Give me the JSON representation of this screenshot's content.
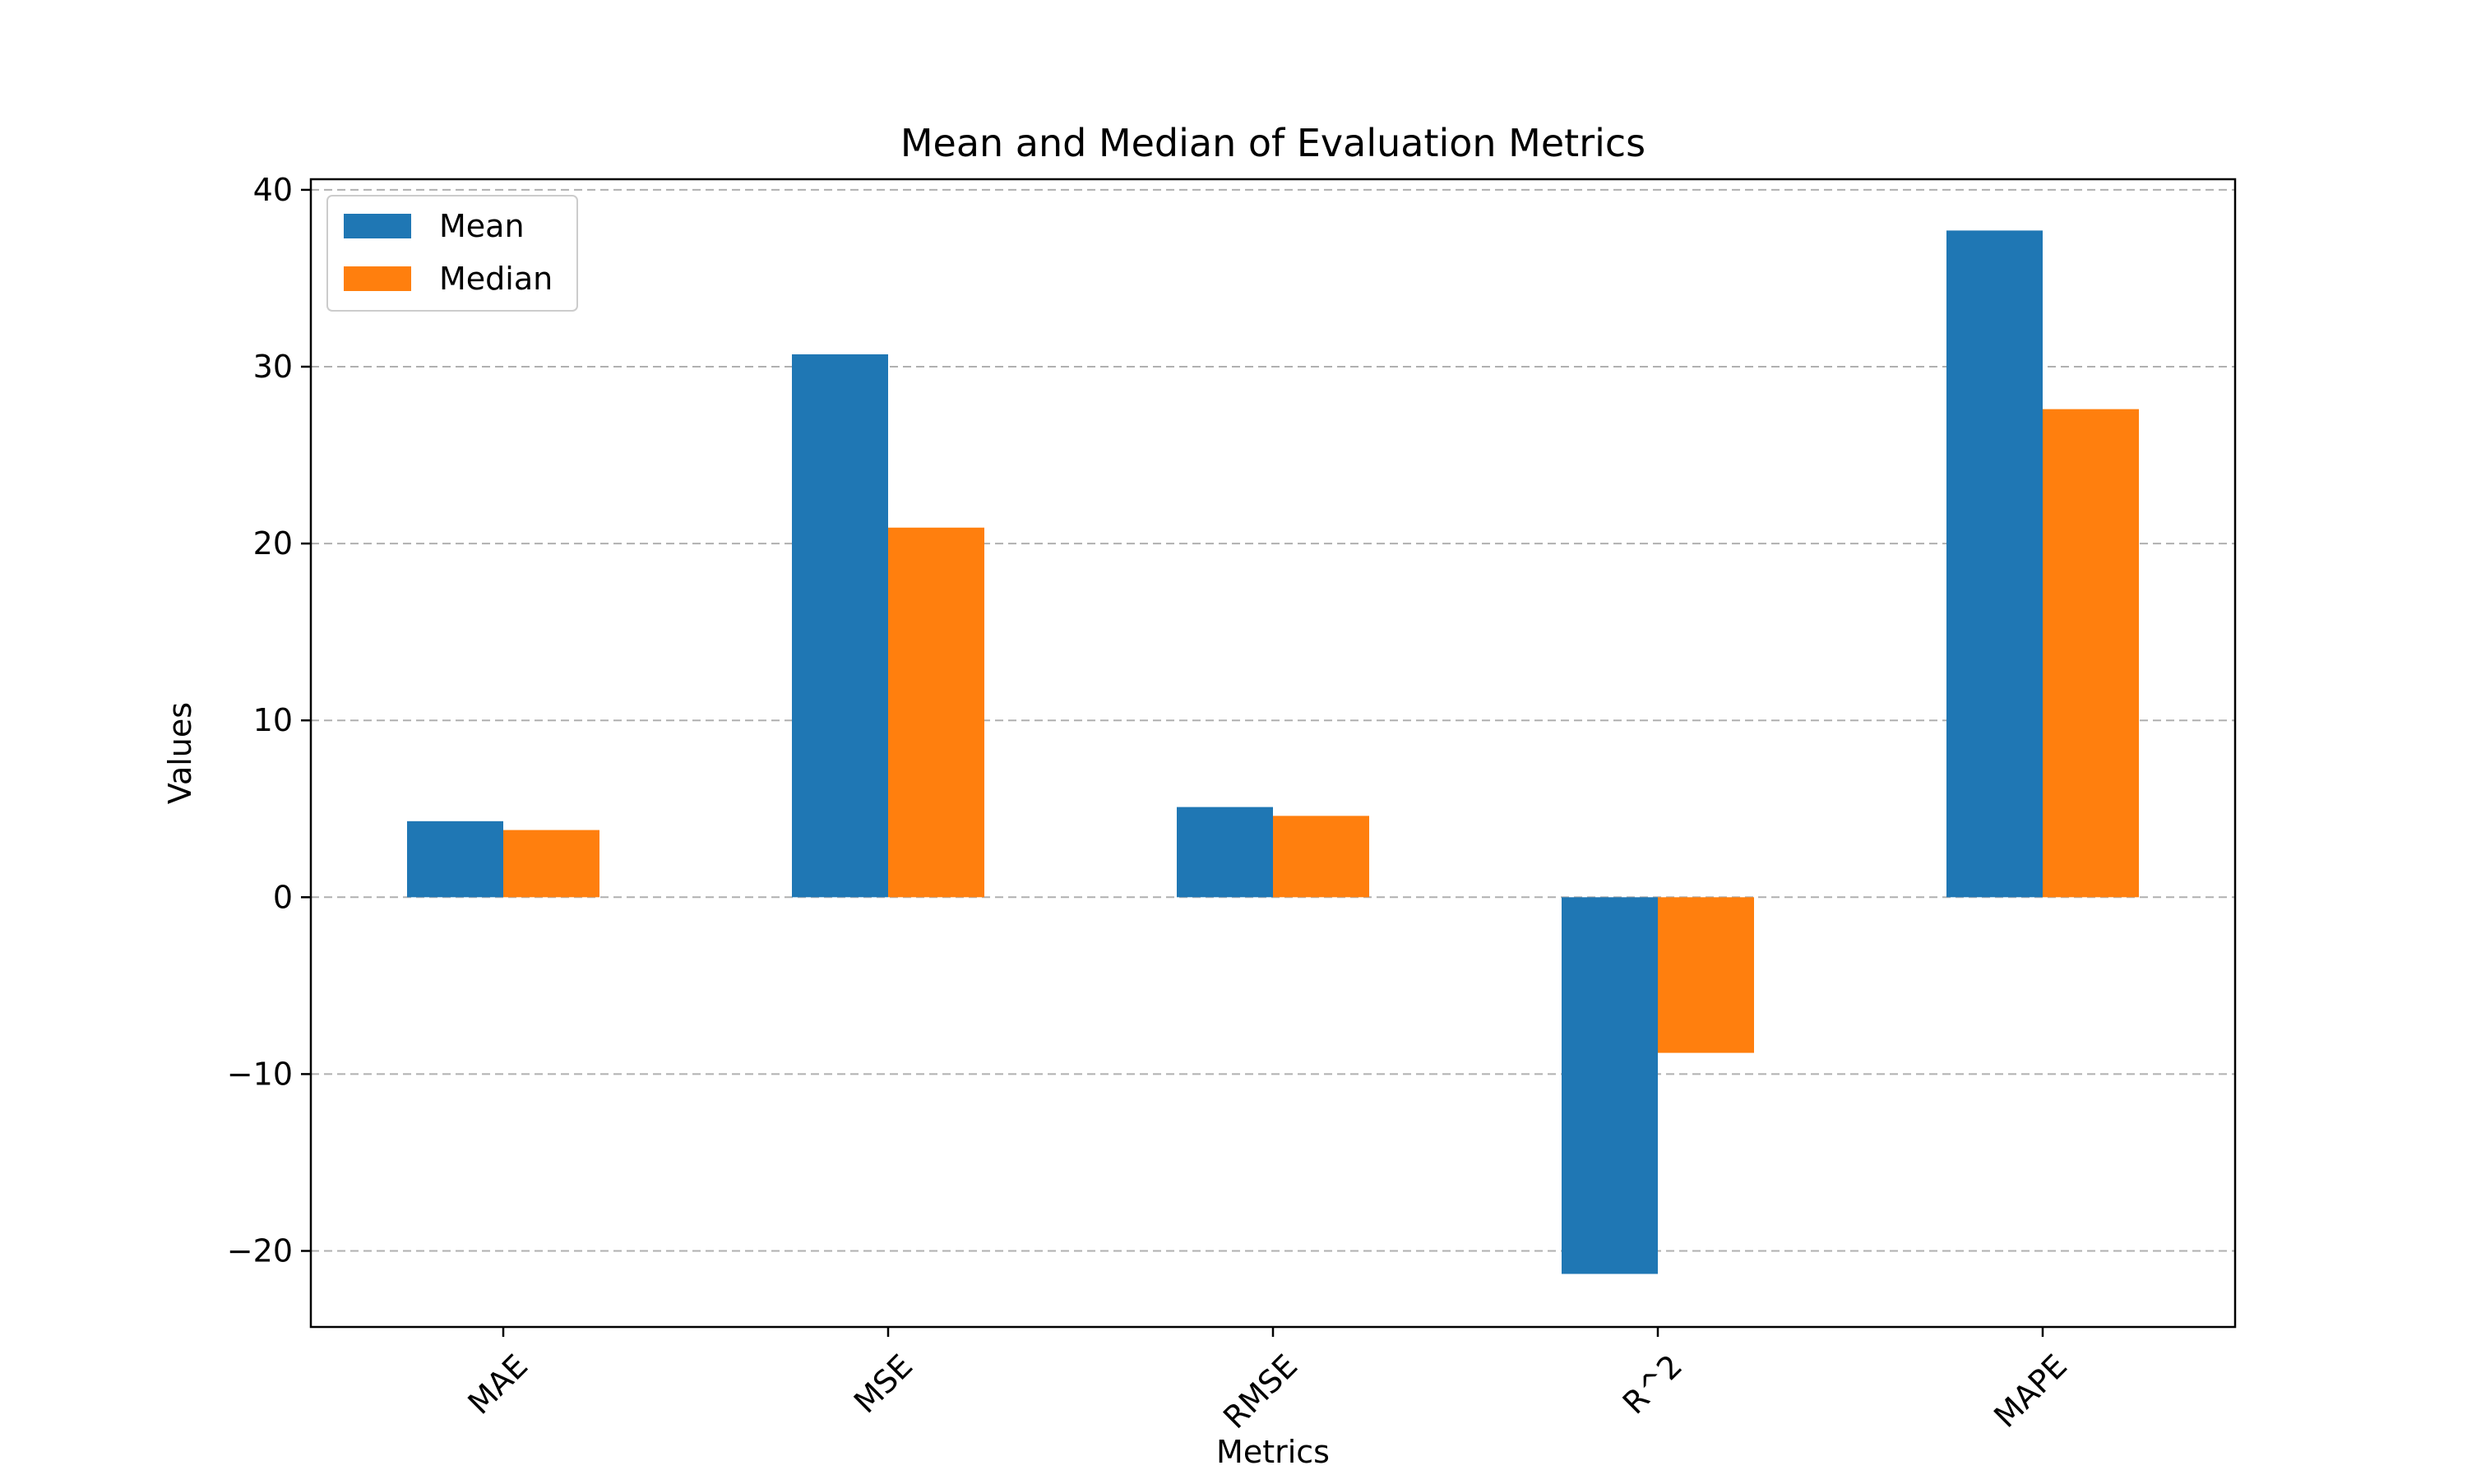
{
  "chart_data": {
    "type": "bar",
    "title": "Mean and Median of Evaluation Metrics",
    "xlabel": "Metrics",
    "ylabel": "Values",
    "categories": [
      "MAE",
      "MSE",
      "RMSE",
      "R^2",
      "MAPE"
    ],
    "series": [
      {
        "name": "Mean",
        "values": [
          4.3,
          30.7,
          5.1,
          -21.3,
          37.7
        ],
        "color": "#1f77b4"
      },
      {
        "name": "Median",
        "values": [
          3.8,
          20.9,
          4.6,
          -8.8,
          27.6
        ],
        "color": "#ff7f0e"
      }
    ],
    "ylim": [
      -24.3,
      40.6
    ],
    "yticks": [
      -20,
      -10,
      0,
      10,
      20,
      30,
      40
    ],
    "ytick_labels": [
      "−20",
      "−10",
      "0",
      "10",
      "20",
      "30",
      "40"
    ],
    "grid": "y-dashed",
    "legend_position": "top-left",
    "xtick_rotation": 45
  }
}
